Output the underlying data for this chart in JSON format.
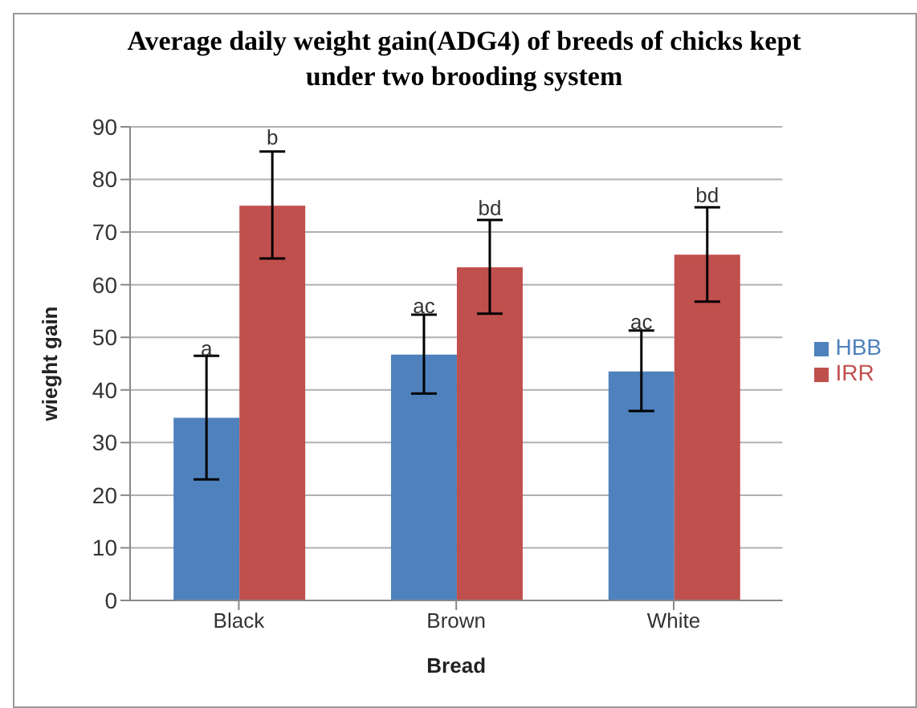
{
  "chart_data": {
    "type": "bar",
    "title": "Average daily weight gain(ADG4) of breeds of chicks kept under two brooding system",
    "xlabel": "Bread",
    "ylabel": "wieght gain",
    "categories": [
      "Black",
      "Brown",
      "White"
    ],
    "series": [
      {
        "name": "HBB",
        "color": "#4f81bd",
        "values": [
          34.7,
          46.7,
          43.5
        ],
        "errors": [
          [
            23,
            46.5
          ],
          [
            39.3,
            54.3
          ],
          [
            36,
            51.3
          ]
        ],
        "value_labels": [
          "a",
          "ac",
          "ac"
        ]
      },
      {
        "name": "IRR",
        "color": "#c0504d",
        "values": [
          75,
          63.3,
          65.7
        ],
        "errors": [
          [
            65,
            85.3
          ],
          [
            54.5,
            72.3
          ],
          [
            56.8,
            74.7
          ]
        ],
        "value_labels": [
          "b",
          "bd",
          "bd"
        ]
      }
    ],
    "ylim": [
      0,
      90
    ],
    "yticks": [
      0,
      10,
      20,
      30,
      40,
      50,
      60,
      70,
      80,
      90
    ],
    "grid": "y",
    "legend": "right"
  }
}
